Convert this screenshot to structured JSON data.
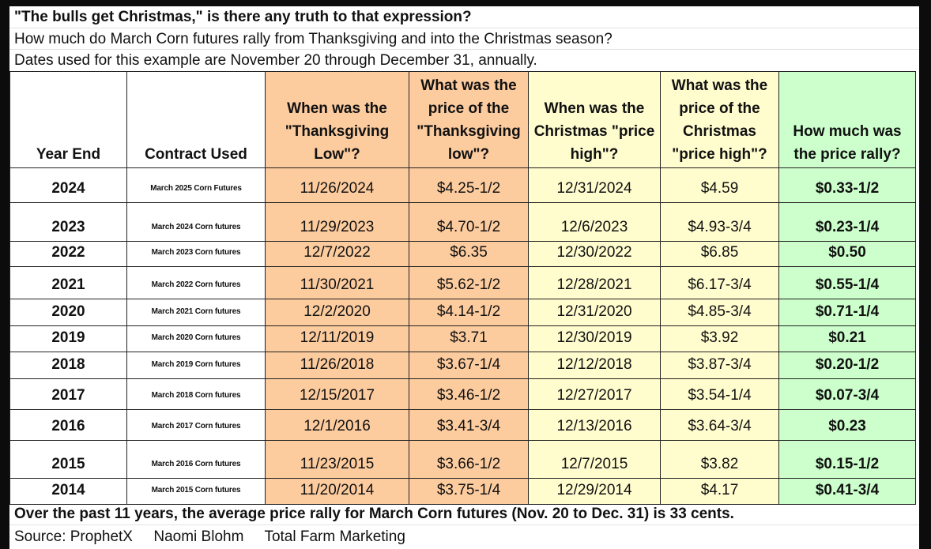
{
  "title": "\"The bulls get Christmas,\" is there any truth to that expression?",
  "subtitle": "How much do March Corn futures rally from Thanksgiving and into the Christmas season?",
  "note": "Dates used for this example are November 20 through December 31, annually.",
  "colors": {
    "thanksgiving_cols": "#fccb9e",
    "christmas_cols": "#fffcce",
    "rally_col": "#ccffcc"
  },
  "headers": [
    "Year End",
    "Contract Used",
    "When was the \"Thanksgiving Low\"?",
    "What was the price of the \"Thanksgiving low\"?",
    "When was the Christmas \"price high\"?",
    "What was the price of the Christmas \"price high\"?",
    "How much was the price rally?"
  ],
  "rows": [
    [
      "2024",
      "March 2025 Corn Futures",
      "11/26/2024",
      "$4.25-1/2",
      "12/31/2024",
      "$4.59",
      "$0.33-1/2"
    ],
    [
      "2023",
      "March 2024 Corn futures",
      "11/29/2023",
      "$4.70-1/2",
      "12/6/2023",
      "$4.93-3/4",
      "$0.23-1/4"
    ],
    [
      "2022",
      "March 2023 Corn futures",
      "12/7/2022",
      "$6.35",
      "12/30/2022",
      "$6.85",
      "$0.50"
    ],
    [
      "2021",
      "March 2022 Corn futures",
      "11/30/2021",
      "$5.62-1/2",
      "12/28/2021",
      "$6.17-3/4",
      "$0.55-1/4"
    ],
    [
      "2020",
      "March 2021 Corn futures",
      "12/2/2020",
      "$4.14-1/2",
      "12/31/2020",
      "$4.85-3/4",
      "$0.71-1/4"
    ],
    [
      "2019",
      "March 2020 Corn futures",
      "12/11/2019",
      "$3.71",
      "12/30/2019",
      "$3.92",
      "$0.21"
    ],
    [
      "2018",
      "March 2019 Corn futures",
      "11/26/2018",
      "$3.67-1/4",
      "12/12/2018",
      "$3.87-3/4",
      "$0.20-1/2"
    ],
    [
      "2017",
      "March 2018 Corn futures",
      "12/15/2017",
      "$3.46-1/2",
      "12/27/2017",
      "$3.54-1/4",
      "$0.07-3/4"
    ],
    [
      "2016",
      "March 2017 Corn futures",
      "12/1/2016",
      "$3.41-3/4",
      "12/13/2016",
      "$3.64-3/4",
      "$0.23"
    ],
    [
      "2015",
      "March 2016 Corn futures",
      "11/23/2015",
      "$3.66-1/2",
      "12/7/2015",
      "$3.82",
      "$0.15-1/2"
    ],
    [
      "2014",
      "March 2015 Corn futures",
      "11/20/2014",
      "$3.75-1/4",
      "12/29/2014",
      "$4.17",
      "$0.41-3/4"
    ]
  ],
  "summary": "Over the past 11 years, the average price rally for March  Corn futures (Nov. 20 to Dec. 31) is 33 cents.",
  "source": "Source: ProphetX     Naomi Blohm     Total Farm Marketing"
}
